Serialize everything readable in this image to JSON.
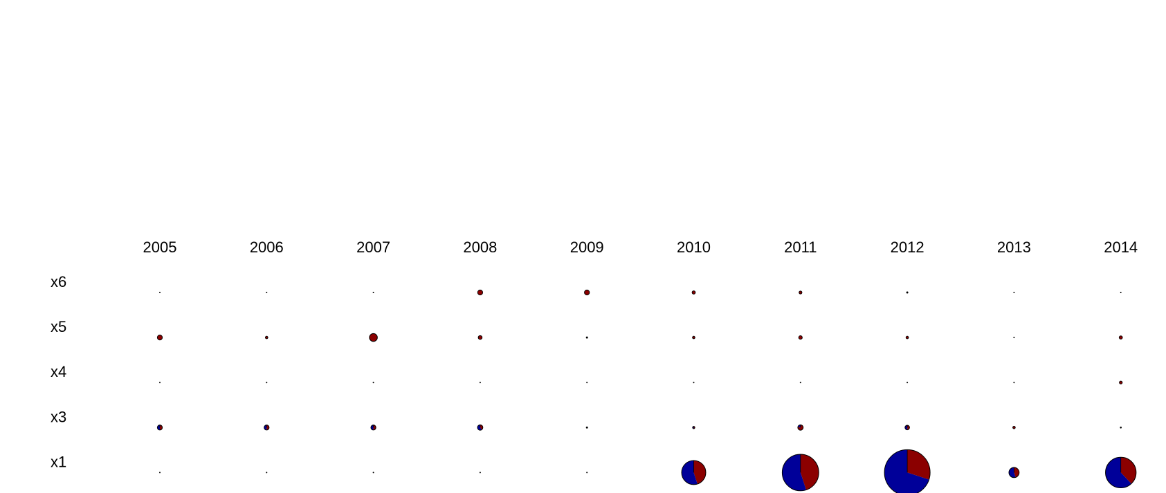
{
  "chart_data": {
    "type": "pie",
    "subtype": "pie-matrix",
    "title": "",
    "columns": [
      "2005",
      "2006",
      "2007",
      "2008",
      "2009",
      "2010",
      "2011",
      "2012",
      "2013",
      "2014"
    ],
    "rows": [
      "x6",
      "x5",
      "x4",
      "x3",
      "x1"
    ],
    "colors": {
      "a": "#000099",
      "b": "#8B0000"
    },
    "size_encoding": "area-proportional",
    "cells": {
      "x6": [
        {
          "size": 0.05,
          "a": 0,
          "b": 1
        },
        {
          "size": 0.05,
          "a": 0,
          "b": 1
        },
        {
          "size": 0.05,
          "a": 0,
          "b": 1
        },
        {
          "size": 1.2,
          "a": 0,
          "b": 1
        },
        {
          "size": 1.2,
          "a": 0,
          "b": 1
        },
        {
          "size": 0.5,
          "a": 0,
          "b": 1
        },
        {
          "size": 0.4,
          "a": 0,
          "b": 1
        },
        {
          "size": 0.2,
          "a": 0,
          "b": 1
        },
        {
          "size": 0.05,
          "a": 0,
          "b": 1
        },
        {
          "size": 0.08,
          "a": 0,
          "b": 1
        }
      ],
      "x5": [
        {
          "size": 1.2,
          "a": 0,
          "b": 1
        },
        {
          "size": 0.3,
          "a": 0,
          "b": 1
        },
        {
          "size": 3.0,
          "a": 0,
          "b": 1
        },
        {
          "size": 0.7,
          "a": 0,
          "b": 1
        },
        {
          "size": 0.2,
          "a": 0,
          "b": 1
        },
        {
          "size": 0.3,
          "a": 0,
          "b": 1
        },
        {
          "size": 0.6,
          "a": 0,
          "b": 1
        },
        {
          "size": 0.3,
          "a": 0,
          "b": 1
        },
        {
          "size": 0.08,
          "a": 0,
          "b": 1
        },
        {
          "size": 0.5,
          "a": 0,
          "b": 1
        }
      ],
      "x4": [
        {
          "size": 0.05,
          "a": 0,
          "b": 1
        },
        {
          "size": 0.05,
          "a": 0,
          "b": 1
        },
        {
          "size": 0.05,
          "a": 0,
          "b": 1
        },
        {
          "size": 0.05,
          "a": 0,
          "b": 1
        },
        {
          "size": 0.05,
          "a": 0,
          "b": 1
        },
        {
          "size": 0.05,
          "a": 0,
          "b": 1
        },
        {
          "size": 0.05,
          "a": 0,
          "b": 1
        },
        {
          "size": 0.05,
          "a": 0,
          "b": 1
        },
        {
          "size": 0.05,
          "a": 0,
          "b": 1
        },
        {
          "size": 0.4,
          "a": 0,
          "b": 1
        }
      ],
      "x3": [
        {
          "size": 1.2,
          "a": 0.5,
          "b": 0.5
        },
        {
          "size": 1.2,
          "a": 0.5,
          "b": 0.5
        },
        {
          "size": 1.2,
          "a": 0.5,
          "b": 0.5
        },
        {
          "size": 1.4,
          "a": 0.6,
          "b": 0.4
        },
        {
          "size": 0.2,
          "a": 0.2,
          "b": 0.8
        },
        {
          "size": 0.25,
          "a": 0.5,
          "b": 0.5
        },
        {
          "size": 1.4,
          "a": 0.2,
          "b": 0.8
        },
        {
          "size": 1.0,
          "a": 0.5,
          "b": 0.5
        },
        {
          "size": 0.3,
          "a": 0,
          "b": 1
        },
        {
          "size": 0.15,
          "a": 0,
          "b": 1
        }
      ],
      "x1": [
        {
          "size": 0.05,
          "a": 0,
          "b": 1
        },
        {
          "size": 0.05,
          "a": 0,
          "b": 1
        },
        {
          "size": 0.05,
          "a": 0,
          "b": 1
        },
        {
          "size": 0.05,
          "a": 0,
          "b": 1
        },
        {
          "size": 0.05,
          "a": 0,
          "b": 1
        },
        {
          "size": 28,
          "a": 0.55,
          "b": 0.45
        },
        {
          "size": 64,
          "a": 0.55,
          "b": 0.45
        },
        {
          "size": 100,
          "a": 0.7,
          "b": 0.3
        },
        {
          "size": 5,
          "a": 0.55,
          "b": 0.45
        },
        {
          "size": 45,
          "a": 0.62,
          "b": 0.38
        }
      ]
    }
  }
}
